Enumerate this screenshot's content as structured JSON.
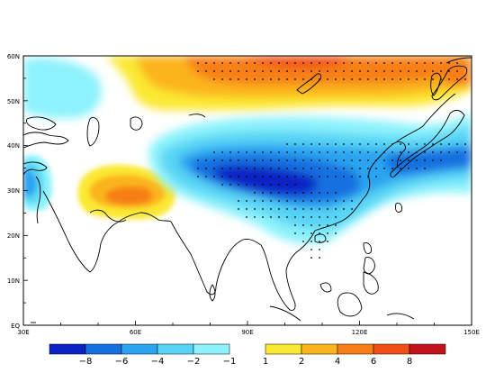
{
  "chart_data": {
    "type": "heatmap",
    "title": "",
    "xlabel": "",
    "ylabel": "",
    "xlim": [
      30,
      150
    ],
    "ylim": [
      0,
      60
    ],
    "x_ticks": [
      "30E",
      "60E",
      "90E",
      "120E",
      "150E"
    ],
    "y_ticks": [
      "EQ",
      "10N",
      "20N",
      "30N",
      "40N",
      "50N",
      "60N"
    ],
    "negative_levels": [
      "−8",
      "−6",
      "−4",
      "−2",
      "−1"
    ],
    "positive_levels": [
      "1",
      "2",
      "4",
      "6",
      "8"
    ],
    "negative_colors": [
      "#0a22c4",
      "#1470e0",
      "#2ba4f0",
      "#58d4f4",
      "#8df2fc"
    ],
    "positive_colors": [
      "#fbe831",
      "#fbb41c",
      "#f77f16",
      "#f05018",
      "#c4121a"
    ],
    "features": [
      {
        "name": "northern-positive-band",
        "lon": [
          78,
          150
        ],
        "lat": [
          50,
          60
        ],
        "peak": 6
      },
      {
        "name": "iran-plateau-positive",
        "lon": [
          45,
          72
        ],
        "lat": [
          23,
          35
        ],
        "peak": 4
      },
      {
        "name": "east-asia-negative-band",
        "lon": [
          68,
          150
        ],
        "lat": [
          22,
          45
        ],
        "peak": -8
      },
      {
        "name": "west-asia-negative",
        "lon": [
          30,
          38
        ],
        "lat": [
          24,
          37
        ],
        "peak": -4
      },
      {
        "name": "north-blue-patch",
        "lon": [
          30,
          50
        ],
        "lat": [
          44,
          55
        ],
        "peak": -2
      }
    ]
  }
}
